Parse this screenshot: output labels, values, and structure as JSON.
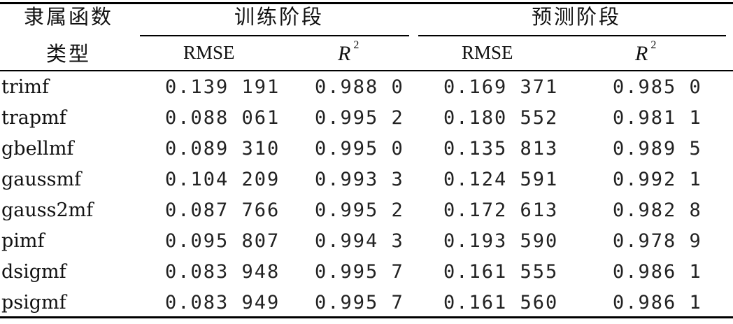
{
  "header": {
    "col0_line1": "隶属函数",
    "col0_line2": "类型",
    "training": "训练阶段",
    "prediction": "预测阶段",
    "rmse": "RMSE",
    "r2_letter": "R",
    "r2_exp": "2"
  },
  "rows": [
    {
      "name": "trimf",
      "train_rmse": "0.139 191",
      "train_r2": "0.988 0",
      "pred_rmse": "0.169 371",
      "pred_r2": "0.985 0"
    },
    {
      "name": "trapmf",
      "train_rmse": "0.088 061",
      "train_r2": "0.995 2",
      "pred_rmse": "0.180 552",
      "pred_r2": "0.981 1"
    },
    {
      "name": "gbellmf",
      "train_rmse": "0.089 310",
      "train_r2": "0.995 0",
      "pred_rmse": "0.135 813",
      "pred_r2": "0.989 5"
    },
    {
      "name": "gaussmf",
      "train_rmse": "0.104 209",
      "train_r2": "0.993 3",
      "pred_rmse": "0.124 591",
      "pred_r2": "0.992 1"
    },
    {
      "name": "gauss2mf",
      "train_rmse": "0.087 766",
      "train_r2": "0.995 2",
      "pred_rmse": "0.172 613",
      "pred_r2": "0.982 8"
    },
    {
      "name": "pimf",
      "train_rmse": "0.095 807",
      "train_r2": "0.994 3",
      "pred_rmse": "0.193 590",
      "pred_r2": "0.978 9"
    },
    {
      "name": "dsigmf",
      "train_rmse": "0.083 948",
      "train_r2": "0.995 7",
      "pred_rmse": "0.161 555",
      "pred_r2": "0.986 1"
    },
    {
      "name": "psigmf",
      "train_rmse": "0.083 949",
      "train_r2": "0.995 7",
      "pred_rmse": "0.161 560",
      "pred_r2": "0.986 1"
    }
  ]
}
